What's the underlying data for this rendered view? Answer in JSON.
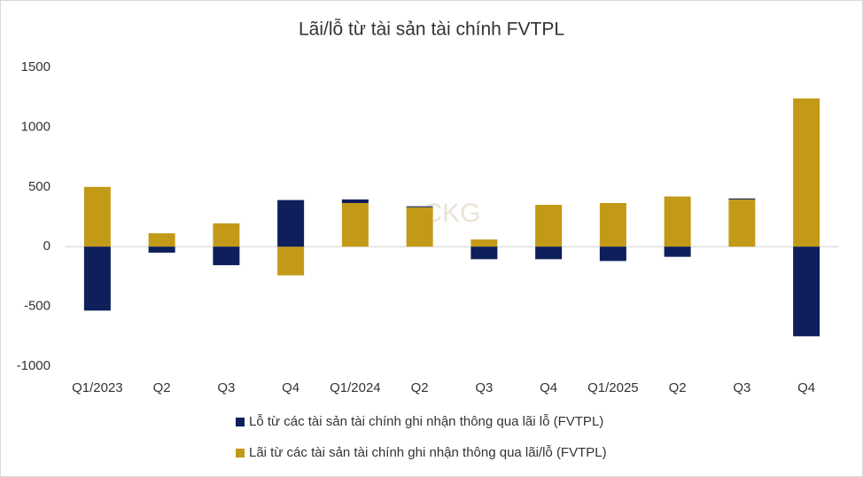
{
  "chart_data": {
    "type": "bar",
    "stacked": true,
    "title": "Lãi/lỗ từ tài sản tài chính FVTPL",
    "watermark": "CKG",
    "categories": [
      "Q1/2023",
      "Q2",
      "Q3",
      "Q4",
      "Q1/2024",
      "Q2",
      "Q3",
      "Q4",
      "Q1/2025",
      "Q2",
      "Q3",
      "Q4"
    ],
    "series": [
      {
        "name": "Lỗ từ các tài sản tài chính ghi nhận thông qua lãi lỗ (FVTPL)",
        "color": "#0e1f5b",
        "values": [
          -535,
          -50,
          -155,
          390,
          30,
          8,
          -105,
          -105,
          -120,
          -85,
          8,
          -750
        ]
      },
      {
        "name": "Lãi từ các tài sản tài chính ghi nhận thông qua lãi/lỗ (FVTPL)",
        "color": "#c39a17",
        "values": [
          500,
          112,
          195,
          -240,
          365,
          330,
          60,
          350,
          365,
          420,
          395,
          1240
        ]
      }
    ],
    "ylim": [
      -1000,
      1500
    ],
    "yticks": [
      -1000,
      -500,
      0,
      500,
      1000,
      1500
    ],
    "grid": false
  }
}
